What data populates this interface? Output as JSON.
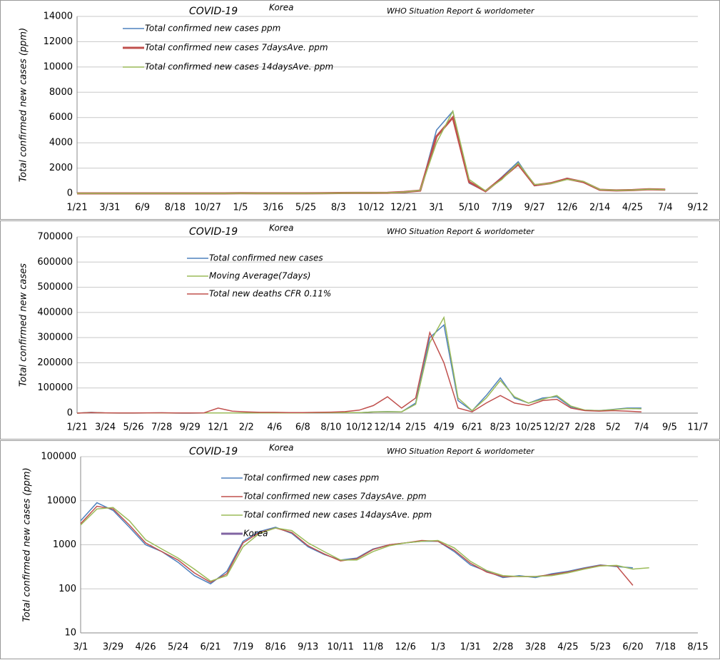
{
  "chart_data": [
    {
      "type": "line",
      "title": "COVID-19",
      "subtitle": "Korea",
      "source": "WHO Situation Report & worldometer",
      "y_label": "Total confirmed new cases (ppm)",
      "categories": [
        "1/21",
        null,
        "3/31",
        null,
        "6/9",
        null,
        "8/18",
        null,
        "10/27",
        null,
        "1/5",
        null,
        "3/16",
        null,
        "5/25",
        null,
        "8/3",
        null,
        "10/12",
        null,
        "12/21",
        null,
        "3/1",
        null,
        "5/10",
        null,
        "7/19",
        null,
        "9/27",
        null,
        "12/6",
        null,
        "2/14",
        null,
        "4/25",
        null,
        "7/4",
        null,
        "9/12"
      ],
      "ylim": [
        0,
        14000
      ],
      "yticks": [
        0,
        2000,
        4000,
        6000,
        8000,
        10000,
        12000,
        14000
      ],
      "grid": true,
      "series": [
        {
          "name": "Total confirmed new cases ppm",
          "color": "#4f81bd",
          "values": [
            0,
            0,
            0,
            0,
            0,
            0,
            0,
            0,
            0,
            0,
            15,
            5,
            5,
            5,
            5,
            10,
            30,
            40,
            30,
            40,
            120,
            200,
            5000,
            6500,
            800,
            150,
            1300,
            2500,
            600,
            800,
            1200,
            900,
            250,
            220,
            270,
            350,
            300,
            null,
            null
          ]
        },
        {
          "name": "Total confirmed new cases 7daysAve. ppm",
          "color": "#c0504d",
          "values": [
            0,
            0,
            0,
            0,
            0,
            0,
            0,
            0,
            0,
            0,
            12,
            6,
            5,
            5,
            6,
            12,
            28,
            35,
            32,
            45,
            110,
            220,
            4500,
            6000,
            900,
            170,
            1200,
            2300,
            650,
            800,
            1150,
            900,
            280,
            230,
            260,
            330,
            300,
            null,
            null
          ]
        },
        {
          "name": "Total confirmed new cases 14daysAve. ppm",
          "color": "#9bbb59",
          "values": [
            0,
            0,
            0,
            0,
            0,
            0,
            0,
            0,
            0,
            0,
            10,
            7,
            5,
            5,
            6,
            12,
            25,
            33,
            33,
            45,
            100,
            240,
            4000,
            6500,
            1100,
            200,
            1100,
            2400,
            700,
            780,
            1100,
            950,
            300,
            240,
            260,
            320,
            300,
            null,
            null
          ]
        }
      ]
    },
    {
      "type": "line",
      "title": "COVID-19",
      "subtitle": "Korea",
      "source": "WHO Situation Report & worldometer",
      "y_label": "Total confirmed new cases",
      "categories": [
        "1/21",
        null,
        "3/24",
        null,
        "5/26",
        null,
        "7/28",
        null,
        "9/29",
        null,
        "12/1",
        null,
        "2/2",
        null,
        "4/6",
        null,
        "6/8",
        null,
        "8/10",
        null,
        "10/12",
        null,
        "12/14",
        null,
        "2/15",
        null,
        "4/19",
        null,
        "6/21",
        null,
        "8/23",
        null,
        "10/25",
        null,
        "12/27",
        null,
        "2/28",
        null,
        "5/2",
        null,
        "7/4",
        null,
        "9/5",
        null,
        "11/7"
      ],
      "ylim": [
        0,
        700000
      ],
      "yticks": [
        0,
        100000,
        200000,
        300000,
        400000,
        500000,
        600000,
        700000
      ],
      "grid": true,
      "series": [
        {
          "name": "Total confirmed new cases",
          "color": "#4f81bd",
          "values": [
            0,
            3000,
            500,
            300,
            400,
            500,
            1000,
            300,
            100,
            600,
            500,
            800,
            400,
            500,
            600,
            600,
            700,
            1800,
            1700,
            2000,
            1500,
            5000,
            6000,
            5000,
            40000,
            300000,
            350000,
            50000,
            9000,
            70000,
            140000,
            60000,
            40000,
            60000,
            65000,
            25000,
            12000,
            10000,
            15000,
            20000,
            20000,
            null,
            null,
            null,
            null
          ]
        },
        {
          "name": "Moving Average(7days)",
          "color": "#9bbb59",
          "values": [
            0,
            2500,
            600,
            300,
            400,
            500,
            900,
            350,
            150,
            550,
            500,
            750,
            450,
            500,
            600,
            600,
            700,
            1700,
            1700,
            1900,
            1600,
            4500,
            5800,
            5200,
            35000,
            280000,
            380000,
            60000,
            10000,
            60000,
            130000,
            65000,
            40000,
            55000,
            70000,
            28000,
            12000,
            10000,
            14000,
            18000,
            17000,
            null,
            null,
            null,
            null
          ]
        },
        {
          "name": "Total new deaths CFR 0.11%",
          "color": "#c0504d",
          "values": [
            0,
            2000,
            1000,
            500,
            800,
            1000,
            1500,
            800,
            500,
            1000,
            20000,
            8000,
            5000,
            3000,
            3000,
            2000,
            2000,
            3000,
            4000,
            6000,
            12000,
            30000,
            65000,
            20000,
            60000,
            320000,
            200000,
            20000,
            5000,
            40000,
            70000,
            40000,
            30000,
            50000,
            55000,
            20000,
            10000,
            8000,
            10000,
            8000,
            5000,
            null,
            null,
            null,
            null
          ]
        }
      ]
    },
    {
      "type": "line",
      "title": "COVID-19",
      "subtitle": "Korea",
      "source": "WHO Situation Report & worldometer",
      "y_label": "Total confirmed new cases (ppm)",
      "log": true,
      "categories": [
        "3/1",
        null,
        "3/29",
        null,
        "4/26",
        null,
        "5/24",
        null,
        "6/21",
        null,
        "7/19",
        null,
        "8/16",
        null,
        "9/13",
        null,
        "10/11",
        null,
        "11/8",
        null,
        "12/6",
        null,
        "1/3",
        null,
        "1/31",
        null,
        "2/28",
        null,
        "3/28",
        null,
        "4/25",
        null,
        "5/23",
        null,
        "6/20",
        null,
        "7/18",
        null,
        "8/15"
      ],
      "ylim": [
        10,
        100000
      ],
      "yticks": [
        10,
        100,
        1000,
        10000,
        100000
      ],
      "grid": true,
      "series": [
        {
          "name": "Total confirmed new cases ppm",
          "color": "#4f81bd",
          "values": [
            3500,
            9000,
            6000,
            2500,
            1000,
            700,
            400,
            200,
            130,
            250,
            1200,
            2000,
            2500,
            1800,
            900,
            600,
            450,
            500,
            800,
            1000,
            1100,
            1200,
            1200,
            700,
            350,
            250,
            180,
            200,
            180,
            220,
            250,
            300,
            350,
            320,
            300,
            null,
            null,
            null,
            null
          ]
        },
        {
          "name": "Total confirmed new cases 7daysAve. ppm",
          "color": "#c0504d",
          "values": [
            3000,
            7500,
            6500,
            2800,
            1100,
            700,
            450,
            230,
            140,
            220,
            1100,
            1900,
            2400,
            1900,
            950,
            620,
            430,
            480,
            780,
            1000,
            1100,
            1250,
            1200,
            750,
            380,
            240,
            190,
            190,
            190,
            210,
            240,
            290,
            340,
            330,
            120,
            null,
            null,
            null,
            null
          ]
        },
        {
          "name": "Total confirmed new cases 14daysAve. ppm",
          "color": "#9bbb59",
          "values": [
            2800,
            6500,
            7000,
            3500,
            1300,
            800,
            500,
            280,
            150,
            200,
            900,
            1800,
            2400,
            2100,
            1100,
            700,
            450,
            450,
            700,
            950,
            1100,
            1200,
            1250,
            850,
            420,
            260,
            200,
            190,
            190,
            200,
            230,
            280,
            330,
            340,
            280,
            300,
            null,
            null,
            null
          ]
        },
        {
          "name": "Korea",
          "color": "#8064a2",
          "values": [
            null,
            null,
            null,
            null,
            null,
            null,
            null,
            null,
            null,
            null,
            null,
            null,
            null,
            null,
            null,
            null,
            null,
            null,
            null,
            null,
            null,
            null,
            null,
            null,
            null,
            null,
            null,
            null,
            null,
            null,
            null,
            null,
            null,
            null,
            null,
            null,
            null,
            null,
            null
          ]
        }
      ]
    }
  ]
}
